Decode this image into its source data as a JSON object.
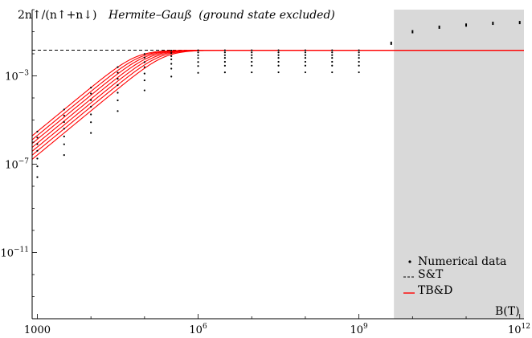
{
  "chart_data": {
    "type": "line",
    "title_formula": "2n↑/(n↑+n↓)",
    "title_text": "Hermite–Gauß",
    "title_paren": "(ground state excluded)",
    "xlabel": "B(T)",
    "ylabel": "",
    "x_scale": "log",
    "y_scale": "log",
    "xlim": [
      800,
      1200000000000.0
    ],
    "ylim": [
      1e-14,
      1
    ],
    "x_ticks": [
      {
        "value": 1000,
        "label": "1000"
      },
      {
        "value": 1000000,
        "base": "10",
        "exp": "6"
      },
      {
        "value": 1000000000,
        "base": "10",
        "exp": "9"
      },
      {
        "value": 1000000000000,
        "base": "10",
        "exp": "12"
      }
    ],
    "y_ticks": [
      {
        "value": 0.001,
        "base": "10",
        "exp": "−3"
      },
      {
        "value": 1e-07,
        "base": "10",
        "exp": "−7"
      },
      {
        "value": 1e-11,
        "base": "10",
        "exp": "−11"
      }
    ],
    "shaded_region": {
      "x_from": 4500000000.0,
      "x_to": 1200000000000.0,
      "color": "#d9d9d9"
    },
    "reference_line": {
      "name": "S&T",
      "y": 0.0145,
      "style": "dashed",
      "color": "#000000"
    },
    "line_color": "#ff0000",
    "marker_color": "#000000",
    "saturation_value": 0.0145,
    "curve_offsets": [
      3e-12,
      2e-12,
      1.35e-12,
      9e-13,
      6e-13,
      4e-13,
      2.6e-13
    ],
    "point_x": [
      1000,
      3160,
      10000,
      31600,
      100000,
      316000,
      1000000,
      3160000,
      10000000,
      31600000,
      100000000,
      316000000,
      1000000000
    ],
    "point_series_scale": [
      1.0,
      0.8,
      0.6,
      0.45,
      0.3,
      0.2,
      0.1
    ],
    "outside_points": [
      {
        "x": 4000000000.0,
        "y": 0.03
      },
      {
        "x": 10000000000.0,
        "y": 0.1
      },
      {
        "x": 31600000000.0,
        "y": 0.16
      },
      {
        "x": 100000000000.0,
        "y": 0.2
      },
      {
        "x": 316000000000.0,
        "y": 0.24
      },
      {
        "x": 1000000000000.0,
        "y": 0.26
      }
    ],
    "legend": [
      {
        "name": "Numerical data",
        "symbol": "dot"
      },
      {
        "name": "S&T",
        "symbol": "dash"
      },
      {
        "name": "TB&D",
        "symbol": "line"
      }
    ],
    "legend_position": "bottom-right",
    "grid": false
  }
}
